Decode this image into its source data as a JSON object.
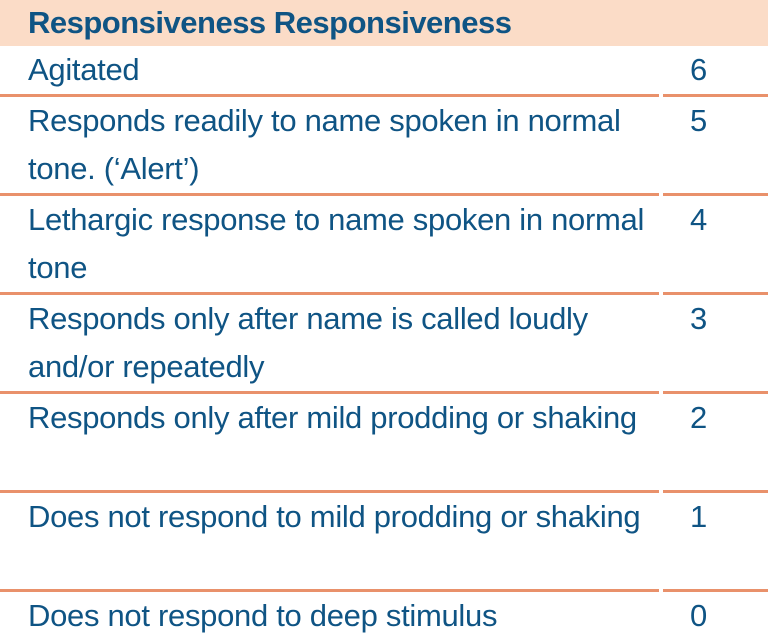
{
  "table": {
    "header": "Responsiveness Responsiveness",
    "rows": [
      {
        "description": "Agitated",
        "score": "6"
      },
      {
        "description": "Responds readily to name spoken in normal tone. (‘Alert’)",
        "score": "5"
      },
      {
        "description": "Lethargic response to name spoken in normal tone",
        "score": "4"
      },
      {
        "description": "Responds only after name is called loudly and/or repeatedly",
        "score": "3"
      },
      {
        "description": "Responds only after mild prodding or shaking",
        "score": "2"
      },
      {
        "description": "Does not respond to mild prodding or shaking",
        "score": "1"
      },
      {
        "description": "Does not respond to deep stimulus",
        "score": "0"
      }
    ]
  },
  "colors": {
    "header_bg": "#fbdcc7",
    "text": "#0f5484",
    "rule": "#e9916b"
  }
}
